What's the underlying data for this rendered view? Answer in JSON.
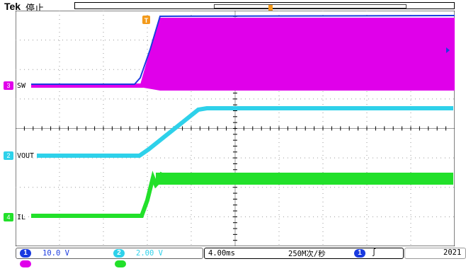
{
  "header": {
    "brand": "Tek",
    "status": "停止"
  },
  "colors": {
    "ch1": "#1a3be0",
    "ch2": "#2ed1ea",
    "ch3": "#e000ea",
    "ch4": "#22e02a",
    "trigger": "#f39a1b",
    "grid": "#9a9a9a"
  },
  "icons": {
    "trigger_marker": "trigger-t-icon",
    "record_position": "trigger-position-icon",
    "level_arrow": "arrow-left-icon",
    "slope": "rising-edge-icon"
  },
  "channels": [
    {
      "id": "3",
      "label": "SW",
      "color": "#e000ea"
    },
    {
      "id": "2",
      "label": "VOUT",
      "color": "#2ed1ea"
    },
    {
      "id": "4",
      "label": "IL",
      "color": "#22e02a"
    }
  ],
  "footer": {
    "ch1_id": "1",
    "ch1_scale": "10.0 V",
    "ch2_id": "2",
    "ch2_scale": "2.00 V",
    "timebase": "4.00ms",
    "sample_rate": "250M次/秒",
    "trig_source": "1",
    "trig_slope": "∫",
    "year": "2021"
  },
  "trigger_marker": "T",
  "position_marker": "T"
}
